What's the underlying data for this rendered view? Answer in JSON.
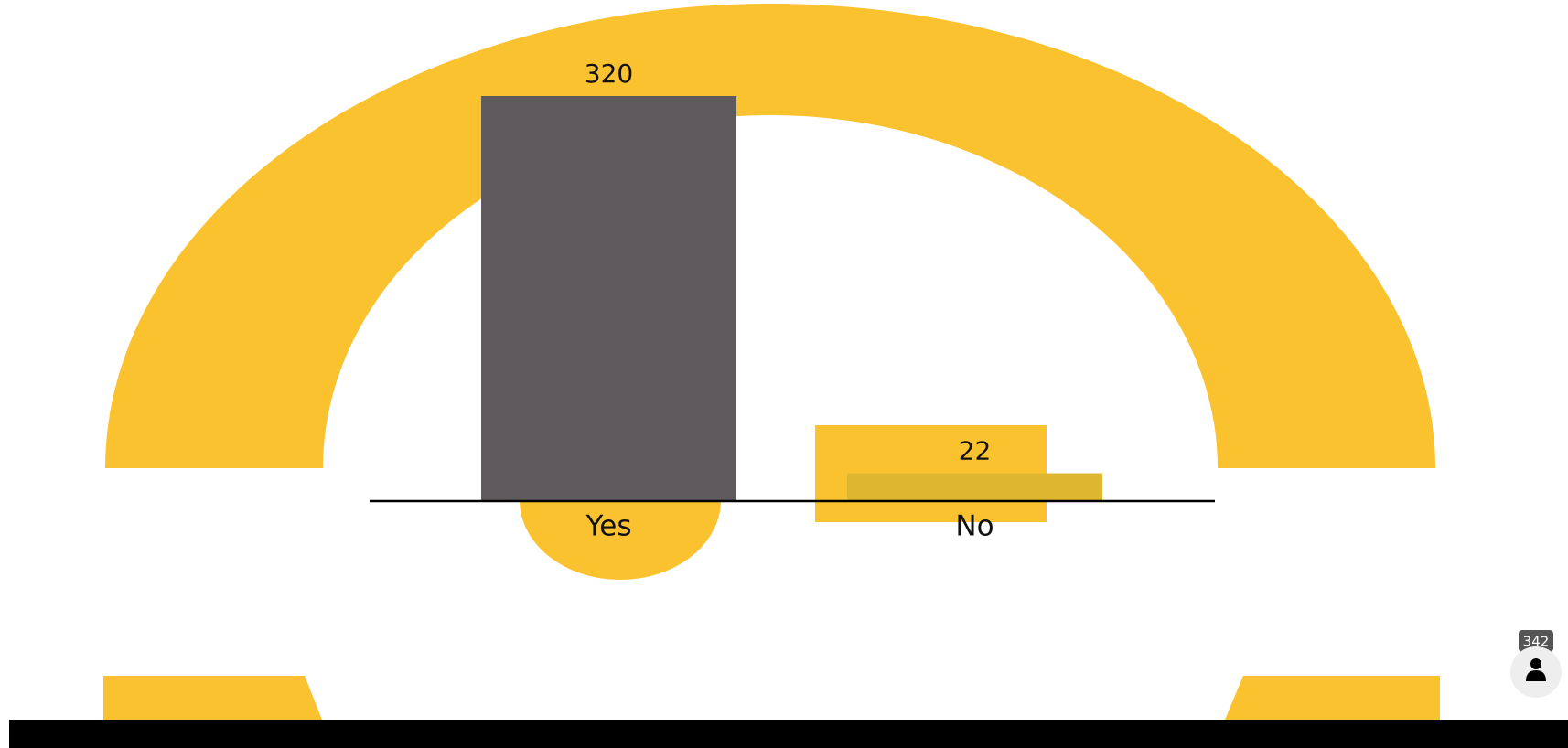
{
  "chart_data": {
    "type": "bar",
    "categories": [
      "Yes",
      "No"
    ],
    "values": [
      320,
      22
    ],
    "colors": [
      "#5f5a5e",
      "#dfb62f"
    ],
    "ylim": [
      0,
      320
    ]
  },
  "participants": 342
}
